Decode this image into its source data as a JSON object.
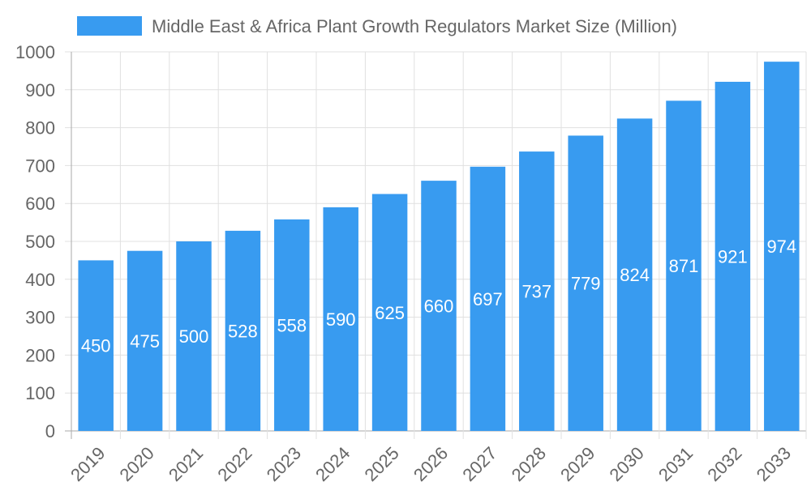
{
  "chart_data": {
    "type": "bar",
    "title": "",
    "xlabel": "",
    "ylabel": "",
    "categories": [
      "2019",
      "2020",
      "2021",
      "2022",
      "2023",
      "2024",
      "2025",
      "2026",
      "2027",
      "2028",
      "2029",
      "2030",
      "2031",
      "2032",
      "2033"
    ],
    "series": [
      {
        "name": "Middle East & Africa Plant Growth Regulators Market Size (Million)",
        "values": [
          450,
          475,
          500,
          528,
          558,
          590,
          625,
          660,
          697,
          737,
          779,
          824,
          871,
          921,
          974
        ]
      }
    ],
    "ylim": [
      0,
      1000
    ],
    "yticks": [
      0,
      100,
      200,
      300,
      400,
      500,
      600,
      700,
      800,
      900,
      1000
    ],
    "grid": true,
    "legend_position": "top",
    "data_labels": true,
    "colors": {
      "bar": "#389bf0",
      "grid": "#e0e0e0",
      "axis": "#aaaaaa",
      "text": "#666666",
      "label": "#ffffff"
    }
  }
}
